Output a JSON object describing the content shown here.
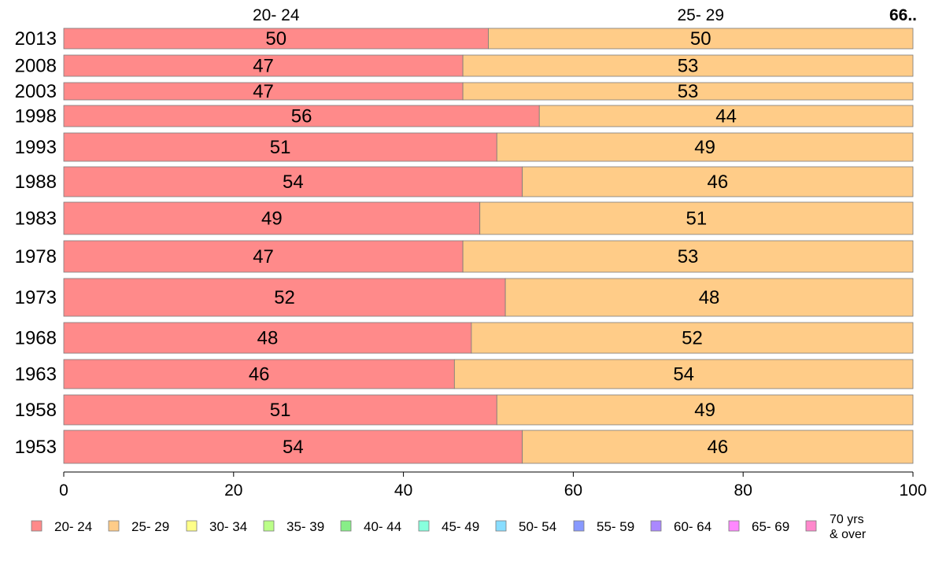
{
  "chart_data": {
    "type": "bar",
    "orientation": "horizontal",
    "stacked": true,
    "categories": [
      "2013",
      "2008",
      "2003",
      "1998",
      "1993",
      "1988",
      "1983",
      "1978",
      "1973",
      "1968",
      "1963",
      "1958",
      "1953"
    ],
    "series": [
      {
        "name": "20- 24",
        "color": "#ff8a8a",
        "values": [
          50,
          47,
          47,
          56,
          51,
          54,
          49,
          47,
          52,
          48,
          46,
          51,
          54
        ]
      },
      {
        "name": "25- 29",
        "color": "#ffcc88",
        "values": [
          50,
          53,
          53,
          44,
          49,
          46,
          51,
          53,
          48,
          52,
          54,
          49,
          46
        ]
      },
      {
        "name": "30- 34",
        "color": "#ffff88",
        "values": [
          0,
          0,
          0,
          0,
          0,
          0,
          0,
          0,
          0,
          0,
          0,
          0,
          0
        ]
      },
      {
        "name": "35- 39",
        "color": "#bbff88",
        "values": [
          0,
          0,
          0,
          0,
          0,
          0,
          0,
          0,
          0,
          0,
          0,
          0,
          0
        ]
      },
      {
        "name": "40- 44",
        "color": "#88ee88",
        "values": [
          0,
          0,
          0,
          0,
          0,
          0,
          0,
          0,
          0,
          0,
          0,
          0,
          0
        ]
      },
      {
        "name": "45- 49",
        "color": "#88ffdd",
        "values": [
          0,
          0,
          0,
          0,
          0,
          0,
          0,
          0,
          0,
          0,
          0,
          0,
          0
        ]
      },
      {
        "name": "50- 54",
        "color": "#88ddff",
        "values": [
          0,
          0,
          0,
          0,
          0,
          0,
          0,
          0,
          0,
          0,
          0,
          0,
          0
        ]
      },
      {
        "name": "55- 59",
        "color": "#8899ff",
        "values": [
          0,
          0,
          0,
          0,
          0,
          0,
          0,
          0,
          0,
          0,
          0,
          0,
          0
        ]
      },
      {
        "name": "60- 64",
        "color": "#aa88ff",
        "values": [
          0,
          0,
          0,
          0,
          0,
          0,
          0,
          0,
          0,
          0,
          0,
          0,
          0
        ]
      },
      {
        "name": "65- 69",
        "color": "#ff88ff",
        "values": [
          0,
          0,
          0,
          0,
          0,
          0,
          0,
          0,
          0,
          0,
          0,
          0,
          0
        ]
      },
      {
        "name": "70 yrs\n& over",
        "color": "#ff88cc",
        "values": [
          0,
          0,
          0,
          0,
          0,
          0,
          0,
          0,
          0,
          0,
          0,
          0,
          0
        ]
      }
    ],
    "xlim": [
      0,
      100
    ],
    "xticks": [
      0,
      20,
      40,
      60,
      80,
      100
    ],
    "top_labels": [
      "20- 24",
      "25- 29"
    ],
    "top_right_label": "66..",
    "title": "",
    "xlabel": "",
    "ylabel": "",
    "grid": false,
    "legend_position": "bottom"
  }
}
